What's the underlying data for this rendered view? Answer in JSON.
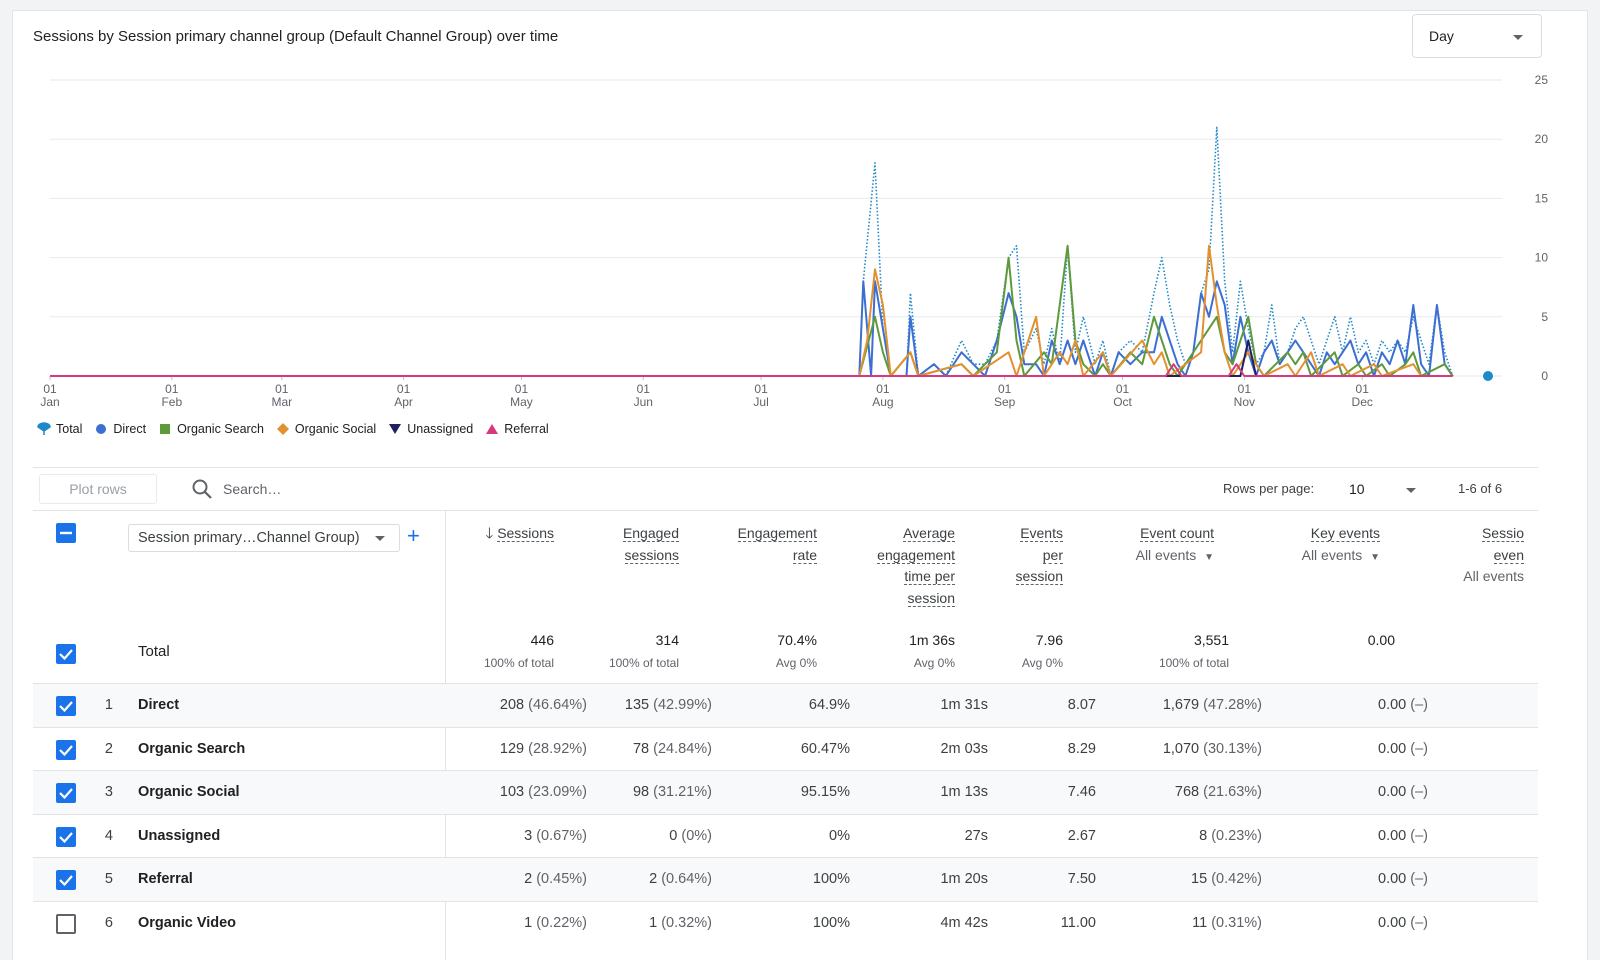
{
  "chart": {
    "title": "Sessions by Session primary channel group (Default Channel Group) over time",
    "granularity": "Day"
  },
  "chart_data": {
    "type": "line",
    "y_ticks": [
      "25",
      "20",
      "15",
      "10",
      "5",
      "0"
    ],
    "ylim": [
      0,
      25
    ],
    "x_ticks": [
      {
        "day": "01",
        "month": "Jan"
      },
      {
        "day": "01",
        "month": "Feb"
      },
      {
        "day": "01",
        "month": "Mar"
      },
      {
        "day": "01",
        "month": "Apr"
      },
      {
        "day": "01",
        "month": "May"
      },
      {
        "day": "01",
        "month": "Jun"
      },
      {
        "day": "01",
        "month": "Jul"
      },
      {
        "day": "01",
        "month": "Aug"
      },
      {
        "day": "01",
        "month": "Sep"
      },
      {
        "day": "01",
        "month": "Oct"
      },
      {
        "day": "01",
        "month": "Nov"
      },
      {
        "day": "01",
        "month": "Dec"
      }
    ],
    "series": [
      {
        "name": "Total",
        "color": "#1e88c8",
        "style": "dotted",
        "points": [
          [
            206,
            0
          ],
          [
            207,
            8
          ],
          [
            210,
            18
          ],
          [
            212,
            4
          ],
          [
            214,
            0
          ],
          [
            218,
            0
          ],
          [
            219,
            7
          ],
          [
            221,
            0
          ],
          [
            225,
            1
          ],
          [
            228,
            0
          ],
          [
            232,
            3
          ],
          [
            235,
            1
          ],
          [
            238,
            1
          ],
          [
            241,
            3
          ],
          [
            244,
            10
          ],
          [
            246,
            11
          ],
          [
            248,
            2
          ],
          [
            251,
            4
          ],
          [
            253,
            1
          ],
          [
            255,
            4
          ],
          [
            257,
            1
          ],
          [
            259,
            11
          ],
          [
            261,
            2
          ],
          [
            263,
            5
          ],
          [
            266,
            1
          ],
          [
            268,
            3
          ],
          [
            270,
            0
          ],
          [
            272,
            2
          ],
          [
            275,
            3
          ],
          [
            278,
            2
          ],
          [
            281,
            7
          ],
          [
            283,
            10
          ],
          [
            285,
            6
          ],
          [
            287,
            3
          ],
          [
            289,
            1
          ],
          [
            291,
            2
          ],
          [
            293,
            7
          ],
          [
            295,
            9
          ],
          [
            297,
            21
          ],
          [
            299,
            8
          ],
          [
            301,
            2
          ],
          [
            303,
            8
          ],
          [
            305,
            4
          ],
          [
            307,
            1
          ],
          [
            309,
            2
          ],
          [
            311,
            6
          ],
          [
            313,
            1
          ],
          [
            315,
            2
          ],
          [
            317,
            4
          ],
          [
            319,
            5
          ],
          [
            321,
            3
          ],
          [
            323,
            1
          ],
          [
            325,
            3
          ],
          [
            327,
            5
          ],
          [
            329,
            2
          ],
          [
            331,
            5
          ],
          [
            333,
            2
          ],
          [
            335,
            3
          ],
          [
            337,
            1
          ],
          [
            339,
            3
          ],
          [
            341,
            2
          ],
          [
            343,
            3
          ],
          [
            345,
            2
          ],
          [
            347,
            5
          ],
          [
            349,
            3
          ],
          [
            351,
            1
          ],
          [
            353,
            6
          ],
          [
            355,
            2
          ],
          [
            357,
            0
          ]
        ]
      },
      {
        "name": "Direct",
        "color": "#3c6fd1",
        "style": "solid",
        "points": [
          [
            206,
            0
          ],
          [
            207,
            8
          ],
          [
            209,
            0
          ],
          [
            210,
            8
          ],
          [
            212,
            4
          ],
          [
            214,
            0
          ],
          [
            218,
            0
          ],
          [
            219,
            5
          ],
          [
            221,
            0
          ],
          [
            225,
            1
          ],
          [
            228,
            0
          ],
          [
            232,
            2
          ],
          [
            235,
            1
          ],
          [
            238,
            0
          ],
          [
            241,
            3
          ],
          [
            244,
            7
          ],
          [
            246,
            5
          ],
          [
            248,
            1
          ],
          [
            251,
            1
          ],
          [
            253,
            0
          ],
          [
            255,
            3
          ],
          [
            257,
            1
          ],
          [
            259,
            3
          ],
          [
            261,
            1
          ],
          [
            263,
            3
          ],
          [
            266,
            0
          ],
          [
            268,
            2
          ],
          [
            270,
            0
          ],
          [
            272,
            2
          ],
          [
            275,
            1
          ],
          [
            278,
            2
          ],
          [
            281,
            2
          ],
          [
            283,
            5
          ],
          [
            285,
            3
          ],
          [
            287,
            1
          ],
          [
            289,
            0
          ],
          [
            291,
            2
          ],
          [
            293,
            7
          ],
          [
            295,
            5
          ],
          [
            297,
            8
          ],
          [
            299,
            6
          ],
          [
            301,
            1
          ],
          [
            303,
            5
          ],
          [
            305,
            2
          ],
          [
            307,
            0
          ],
          [
            309,
            2
          ],
          [
            311,
            3
          ],
          [
            313,
            1
          ],
          [
            315,
            2
          ],
          [
            317,
            3
          ],
          [
            319,
            2
          ],
          [
            321,
            1
          ],
          [
            323,
            0
          ],
          [
            325,
            2
          ],
          [
            327,
            1
          ],
          [
            329,
            2
          ],
          [
            331,
            3
          ],
          [
            333,
            1
          ],
          [
            335,
            2
          ],
          [
            337,
            0
          ],
          [
            339,
            2
          ],
          [
            341,
            1
          ],
          [
            343,
            3
          ],
          [
            345,
            1
          ],
          [
            347,
            6
          ],
          [
            349,
            1
          ],
          [
            351,
            0
          ],
          [
            353,
            6
          ],
          [
            355,
            1
          ],
          [
            357,
            0
          ]
        ]
      },
      {
        "name": "Organic Search",
        "color": "#5e9a3b",
        "style": "solid",
        "points": [
          [
            206,
            0
          ],
          [
            210,
            5
          ],
          [
            212,
            2
          ],
          [
            214,
            0
          ],
          [
            219,
            2
          ],
          [
            221,
            0
          ],
          [
            232,
            1
          ],
          [
            235,
            0
          ],
          [
            241,
            2
          ],
          [
            244,
            10
          ],
          [
            246,
            3
          ],
          [
            248,
            0
          ],
          [
            253,
            2
          ],
          [
            255,
            1
          ],
          [
            259,
            11
          ],
          [
            261,
            3
          ],
          [
            263,
            1
          ],
          [
            266,
            0
          ],
          [
            268,
            1
          ],
          [
            270,
            0
          ],
          [
            275,
            2
          ],
          [
            278,
            1
          ],
          [
            281,
            5
          ],
          [
            283,
            3
          ],
          [
            285,
            1
          ],
          [
            287,
            0
          ],
          [
            293,
            3
          ],
          [
            295,
            4
          ],
          [
            297,
            5
          ],
          [
            299,
            2
          ],
          [
            301,
            1
          ],
          [
            305,
            5
          ],
          [
            307,
            1
          ],
          [
            309,
            0
          ],
          [
            315,
            2
          ],
          [
            317,
            1
          ],
          [
            319,
            2
          ],
          [
            321,
            0
          ],
          [
            327,
            2
          ],
          [
            329,
            0
          ],
          [
            333,
            1
          ],
          [
            335,
            0
          ],
          [
            339,
            1
          ],
          [
            341,
            0
          ],
          [
            345,
            1
          ],
          [
            347,
            2
          ],
          [
            349,
            0
          ],
          [
            355,
            1
          ],
          [
            357,
            0
          ]
        ]
      },
      {
        "name": "Organic Social",
        "color": "#e3912f",
        "style": "solid",
        "points": [
          [
            206,
            0
          ],
          [
            208,
            3
          ],
          [
            210,
            9
          ],
          [
            212,
            6
          ],
          [
            214,
            0
          ],
          [
            219,
            2
          ],
          [
            221,
            0
          ],
          [
            232,
            1
          ],
          [
            235,
            0
          ],
          [
            244,
            2
          ],
          [
            246,
            0
          ],
          [
            251,
            5
          ],
          [
            253,
            0
          ],
          [
            257,
            2
          ],
          [
            259,
            1
          ],
          [
            261,
            3
          ],
          [
            263,
            0
          ],
          [
            268,
            2
          ],
          [
            270,
            0
          ],
          [
            278,
            3
          ],
          [
            281,
            1
          ],
          [
            283,
            2
          ],
          [
            285,
            0
          ],
          [
            293,
            2
          ],
          [
            295,
            11
          ],
          [
            297,
            6
          ],
          [
            299,
            2
          ],
          [
            301,
            0
          ],
          [
            305,
            2
          ],
          [
            307,
            1
          ],
          [
            309,
            0
          ],
          [
            315,
            1
          ],
          [
            317,
            0
          ],
          [
            321,
            2
          ],
          [
            323,
            0
          ],
          [
            329,
            1
          ],
          [
            331,
            0
          ],
          [
            337,
            1
          ],
          [
            339,
            0
          ],
          [
            347,
            1
          ],
          [
            349,
            0
          ]
        ]
      },
      {
        "name": "Unassigned",
        "color": "#20205f",
        "style": "solid",
        "points": [
          [
            206,
            0
          ],
          [
            303,
            0
          ],
          [
            305,
            3
          ],
          [
            307,
            0
          ],
          [
            357,
            0
          ]
        ]
      },
      {
        "name": "Referral",
        "color": "#d6397d",
        "style": "solid",
        "points": [
          [
            0,
            0
          ],
          [
            284,
            0
          ],
          [
            286,
            1
          ],
          [
            288,
            0
          ],
          [
            300,
            0
          ],
          [
            302,
            1
          ],
          [
            304,
            0
          ],
          [
            357,
            0
          ]
        ]
      }
    ]
  },
  "legend": [
    {
      "name": "Total",
      "icon": "pin-icon",
      "color": "#1e88c8"
    },
    {
      "name": "Direct",
      "icon": "circle-icon",
      "color": "#3c6fd1"
    },
    {
      "name": "Organic Search",
      "icon": "square-icon",
      "color": "#5e9a3b"
    },
    {
      "name": "Organic Social",
      "icon": "diamond-icon",
      "color": "#e3912f"
    },
    {
      "name": "Unassigned",
      "icon": "triangle-down-icon",
      "color": "#20205f"
    },
    {
      "name": "Referral",
      "icon": "triangle-up-icon",
      "color": "#d6397d"
    }
  ],
  "toolbar": {
    "plot_rows": "Plot rows",
    "search_placeholder": "Search…",
    "rows_per_page_label": "Rows per page:",
    "rows_per_page": "10",
    "pagination": "1-6 of 6"
  },
  "table": {
    "dimension": "Session primary…Channel Group)",
    "headers": {
      "sessions": "Sessions",
      "engaged_1": "Engaged",
      "engaged_2": "sessions",
      "engrate_1": "Engagement",
      "engrate_2": "rate",
      "avg_1": "Average",
      "avg_2": "engagement",
      "avg_3": "time per",
      "avg_4": "session",
      "events_1": "Events",
      "events_2": "per",
      "events_3": "session",
      "eventcount": "Event count",
      "eventcount_sub": "All events",
      "keyevents": "Key events",
      "keyevents_sub": "All events",
      "sessevents_1": "Sessio",
      "sessevents_2": "even",
      "sessevents_sub": "All events"
    },
    "total": {
      "label": "Total",
      "sessions": "446",
      "sessions_sub": "100% of total",
      "engaged": "314",
      "engaged_sub": "100% of total",
      "engrate": "70.4%",
      "engrate_sub": "Avg 0%",
      "avgtime": "1m 36s",
      "avgtime_sub": "Avg 0%",
      "events_per": "7.96",
      "events_per_sub": "Avg 0%",
      "eventcount": "3,551",
      "eventcount_sub": "100% of total",
      "keyevents": "0.00"
    },
    "rows": [
      {
        "num": "1",
        "name": "Direct",
        "sessions": "208",
        "sessions_pct": "(46.64%)",
        "engaged": "135",
        "engaged_pct": "(42.99%)",
        "engrate": "64.9%",
        "avgtime": "1m 31s",
        "events_per": "8.07",
        "eventcount": "1,679",
        "eventcount_pct": "(47.28%)",
        "keyevents": "0.00",
        "keyevents_pct": "(–)"
      },
      {
        "num": "2",
        "name": "Organic Search",
        "sessions": "129",
        "sessions_pct": "(28.92%)",
        "engaged": "78",
        "engaged_pct": "(24.84%)",
        "engrate": "60.47%",
        "avgtime": "2m 03s",
        "events_per": "8.29",
        "eventcount": "1,070",
        "eventcount_pct": "(30.13%)",
        "keyevents": "0.00",
        "keyevents_pct": "(–)"
      },
      {
        "num": "3",
        "name": "Organic Social",
        "sessions": "103",
        "sessions_pct": "(23.09%)",
        "engaged": "98",
        "engaged_pct": "(31.21%)",
        "engrate": "95.15%",
        "avgtime": "1m 13s",
        "events_per": "7.46",
        "eventcount": "768",
        "eventcount_pct": "(21.63%)",
        "keyevents": "0.00",
        "keyevents_pct": "(–)"
      },
      {
        "num": "4",
        "name": "Unassigned",
        "sessions": "3",
        "sessions_pct": "(0.67%)",
        "engaged": "0",
        "engaged_pct": "(0%)",
        "engrate": "0%",
        "avgtime": "27s",
        "events_per": "2.67",
        "eventcount": "8",
        "eventcount_pct": "(0.23%)",
        "keyevents": "0.00",
        "keyevents_pct": "(–)"
      },
      {
        "num": "5",
        "name": "Referral",
        "sessions": "2",
        "sessions_pct": "(0.45%)",
        "engaged": "2",
        "engaged_pct": "(0.64%)",
        "engrate": "100%",
        "avgtime": "1m 20s",
        "events_per": "7.50",
        "eventcount": "15",
        "eventcount_pct": "(0.42%)",
        "keyevents": "0.00",
        "keyevents_pct": "(–)"
      },
      {
        "num": "6",
        "name": "Organic Video",
        "sessions": "1",
        "sessions_pct": "(0.22%)",
        "engaged": "1",
        "engaged_pct": "(0.32%)",
        "engrate": "100%",
        "avgtime": "4m 42s",
        "events_per": "11.00",
        "eventcount": "11",
        "eventcount_pct": "(0.31%)",
        "keyevents": "0.00",
        "keyevents_pct": "(–)"
      }
    ],
    "row_checked": [
      true,
      true,
      true,
      true,
      true,
      false
    ]
  }
}
